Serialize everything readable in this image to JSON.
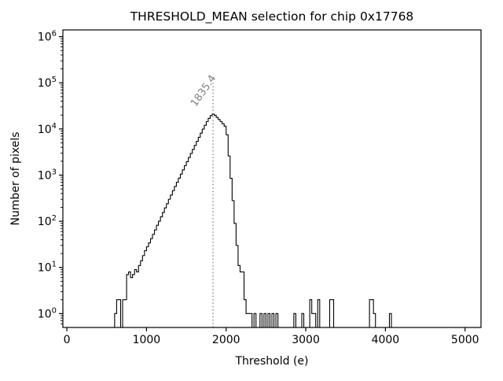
{
  "chart_data": {
    "type": "histogram-step",
    "title": "THRESHOLD_MEAN selection for chip 0x17768",
    "xlabel": "Threshold (e)",
    "ylabel": "Number of pixels",
    "y_scale": "log",
    "xlim": [
      -50,
      5200
    ],
    "ylim": [
      0.5,
      1400000
    ],
    "x_ticks": [
      0,
      1000,
      2000,
      3000,
      4000,
      5000
    ],
    "y_tick_exponents": [
      0,
      1,
      2,
      3,
      4,
      5,
      6
    ],
    "grid": false,
    "legend": "none",
    "line_color": "#000000",
    "background_color": "#ffffff",
    "bin_width": 25,
    "bins": [
      [
        600,
        1
      ],
      [
        625,
        2
      ],
      [
        650,
        2
      ],
      [
        700,
        2
      ],
      [
        725,
        2
      ],
      [
        750,
        7
      ],
      [
        775,
        8
      ],
      [
        800,
        6
      ],
      [
        825,
        7
      ],
      [
        850,
        9
      ],
      [
        875,
        8
      ],
      [
        900,
        11
      ],
      [
        925,
        14
      ],
      [
        950,
        18
      ],
      [
        975,
        23
      ],
      [
        1000,
        28
      ],
      [
        1025,
        34
      ],
      [
        1050,
        42
      ],
      [
        1075,
        52
      ],
      [
        1100,
        65
      ],
      [
        1125,
        82
      ],
      [
        1150,
        100
      ],
      [
        1175,
        125
      ],
      [
        1200,
        155
      ],
      [
        1225,
        195
      ],
      [
        1250,
        240
      ],
      [
        1275,
        300
      ],
      [
        1300,
        370
      ],
      [
        1325,
        460
      ],
      [
        1350,
        570
      ],
      [
        1375,
        700
      ],
      [
        1400,
        860
      ],
      [
        1425,
        1050
      ],
      [
        1450,
        1300
      ],
      [
        1475,
        1600
      ],
      [
        1500,
        1950
      ],
      [
        1525,
        2400
      ],
      [
        1550,
        2950
      ],
      [
        1575,
        3600
      ],
      [
        1600,
        4400
      ],
      [
        1625,
        5400
      ],
      [
        1650,
        6600
      ],
      [
        1675,
        8100
      ],
      [
        1700,
        9900
      ],
      [
        1725,
        12000
      ],
      [
        1750,
        14500
      ],
      [
        1775,
        17000
      ],
      [
        1800,
        19500
      ],
      [
        1825,
        21000
      ],
      [
        1850,
        19800
      ],
      [
        1875,
        17800
      ],
      [
        1900,
        16000
      ],
      [
        1925,
        14500
      ],
      [
        1950,
        13000
      ],
      [
        1975,
        11500
      ],
      [
        2000,
        7500
      ],
      [
        2025,
        2600
      ],
      [
        2050,
        850
      ],
      [
        2075,
        280
      ],
      [
        2100,
        90
      ],
      [
        2125,
        30
      ],
      [
        2150,
        11
      ],
      [
        2175,
        8
      ],
      [
        2200,
        8
      ],
      [
        2225,
        2
      ],
      [
        2250,
        1
      ],
      [
        2275,
        1
      ],
      [
        2300,
        1
      ],
      [
        2350,
        1
      ],
      [
        2425,
        1
      ],
      [
        2475,
        1
      ],
      [
        2525,
        1
      ],
      [
        2575,
        1
      ],
      [
        2625,
        1
      ],
      [
        2850,
        1
      ],
      [
        2950,
        1
      ],
      [
        3050,
        2
      ],
      [
        3075,
        1
      ],
      [
        3100,
        1
      ],
      [
        3150,
        2
      ],
      [
        3300,
        2
      ],
      [
        3325,
        2
      ],
      [
        3800,
        2
      ],
      [
        3825,
        2
      ],
      [
        3850,
        1
      ],
      [
        4050,
        1
      ]
    ],
    "vline": {
      "x": 1835.4,
      "label": "1835.4",
      "style": "dotted",
      "color": "#7f7f7f",
      "label_rotation_deg": -55
    }
  }
}
